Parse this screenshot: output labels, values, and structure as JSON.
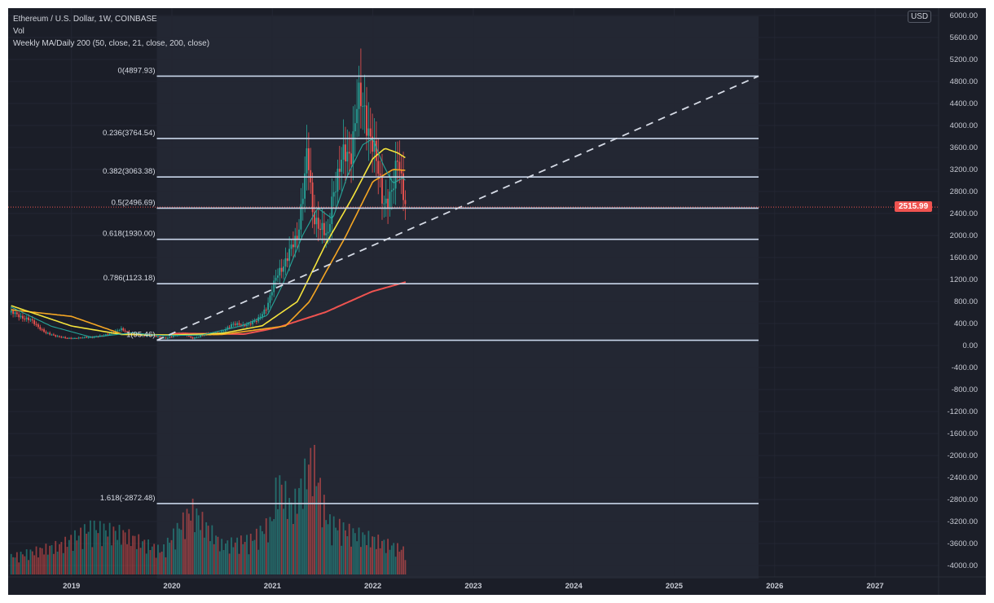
{
  "header": {
    "symbol_title": "Ethereum / U.S. Dollar, 1W, COINBASE",
    "indicator_vol": "Vol",
    "indicator_ma": "Weekly MA/Daily 200 (50, close, 21, close, 200, close)"
  },
  "price_axis": {
    "currency_button": "USD",
    "last_price": "2515.99"
  },
  "colors": {
    "background": "#1b1e28",
    "up": "#26a69a",
    "down": "#ef5350",
    "ma21": "#26a69a",
    "ma50_yellow": "#f5e43c",
    "ma_orange": "#f5a623",
    "ma200": "#ef5350",
    "fib": "#c9d6ea"
  },
  "chart_data": {
    "type": "candlestick",
    "title": "Ethereum / U.S. Dollar, 1W, COINBASE",
    "ylim": [
      -4200,
      6000
    ],
    "y_ticks": [
      "6000.00",
      "5600.00",
      "5200.00",
      "4800.00",
      "4400.00",
      "4000.00",
      "3600.00",
      "3200.00",
      "2800.00",
      "2400.00",
      "2000.00",
      "1600.00",
      "1200.00",
      "800.00",
      "400.00",
      "0.00",
      "-400.00",
      "-800.00",
      "-1200.00",
      "-1600.00",
      "-2000.00",
      "-2400.00",
      "-2800.00",
      "-3200.00",
      "-3600.00",
      "-4000.00"
    ],
    "x_ticks": [
      "2019",
      "2020",
      "2021",
      "2022",
      "2023",
      "2024",
      "2025",
      "2026",
      "2027"
    ],
    "price_close": [
      [
        2018.4,
        600
      ],
      [
        2018.6,
        450
      ],
      [
        2018.75,
        220
      ],
      [
        2018.95,
        130
      ],
      [
        2019.1,
        140
      ],
      [
        2019.3,
        170
      ],
      [
        2019.45,
        260
      ],
      [
        2019.5,
        300
      ],
      [
        2019.6,
        200
      ],
      [
        2019.8,
        180
      ],
      [
        2019.95,
        130
      ],
      [
        2020.1,
        230
      ],
      [
        2020.2,
        130
      ],
      [
        2020.35,
        210
      ],
      [
        2020.5,
        240
      ],
      [
        2020.6,
        400
      ],
      [
        2020.7,
        360
      ],
      [
        2020.85,
        450
      ],
      [
        2020.95,
        730
      ],
      [
        2021.05,
        1300
      ],
      [
        2021.15,
        1600
      ],
      [
        2021.25,
        2000
      ],
      [
        2021.35,
        3500
      ],
      [
        2021.4,
        2400
      ],
      [
        2021.5,
        2100
      ],
      [
        2021.55,
        1900
      ],
      [
        2021.6,
        2800
      ],
      [
        2021.7,
        3400
      ],
      [
        2021.78,
        3500
      ],
      [
        2021.85,
        4500
      ],
      [
        2021.92,
        4200
      ],
      [
        2022.0,
        3700
      ],
      [
        2022.1,
        2600
      ],
      [
        2022.2,
        2800
      ],
      [
        2022.25,
        3400
      ],
      [
        2022.3,
        2900
      ],
      [
        2022.33,
        2516
      ]
    ],
    "ma21": [
      [
        2018.4,
        700
      ],
      [
        2018.8,
        350
      ],
      [
        2019.2,
        150
      ],
      [
        2019.6,
        230
      ],
      [
        2019.9,
        180
      ],
      [
        2020.3,
        190
      ],
      [
        2020.7,
        360
      ],
      [
        2020.95,
        550
      ],
      [
        2021.1,
        1100
      ],
      [
        2021.3,
        2000
      ],
      [
        2021.45,
        2500
      ],
      [
        2021.6,
        2300
      ],
      [
        2021.75,
        3100
      ],
      [
        2021.9,
        3650
      ],
      [
        2022.0,
        3760
      ],
      [
        2022.1,
        3300
      ],
      [
        2022.2,
        2950
      ],
      [
        2022.3,
        3050
      ],
      [
        2022.33,
        2990
      ]
    ],
    "ma_yellow": [
      [
        2018.4,
        725
      ],
      [
        2019.0,
        355
      ],
      [
        2019.5,
        200
      ],
      [
        2020.0,
        190
      ],
      [
        2020.5,
        220
      ],
      [
        2020.9,
        360
      ],
      [
        2021.25,
        800
      ],
      [
        2021.53,
        1840
      ],
      [
        2021.8,
        2700
      ],
      [
        2022.0,
        3400
      ],
      [
        2022.12,
        3585
      ],
      [
        2022.25,
        3500
      ],
      [
        2022.33,
        3407
      ]
    ],
    "ma_orange": [
      [
        2018.4,
        650
      ],
      [
        2019.0,
        530
      ],
      [
        2019.5,
        210
      ],
      [
        2020.0,
        190
      ],
      [
        2020.5,
        200
      ],
      [
        2021.13,
        355
      ],
      [
        2021.37,
        800
      ],
      [
        2021.73,
        1985
      ],
      [
        2022.0,
        2980
      ],
      [
        2022.2,
        3200
      ],
      [
        2022.33,
        3185
      ]
    ],
    "ma200": [
      [
        2020.0,
        220
      ],
      [
        2020.72,
        207
      ],
      [
        2021.05,
        326
      ],
      [
        2021.53,
        607
      ],
      [
        2021.99,
        980
      ],
      [
        2022.33,
        1155
      ]
    ],
    "volume_relative": [
      [
        2018.4,
        15
      ],
      [
        2018.9,
        25
      ],
      [
        2019.2,
        40
      ],
      [
        2019.5,
        35
      ],
      [
        2019.9,
        20
      ],
      [
        2020.2,
        55
      ],
      [
        2020.5,
        25
      ],
      [
        2020.8,
        30
      ],
      [
        2021.0,
        45
      ],
      [
        2021.05,
        80
      ],
      [
        2021.2,
        55
      ],
      [
        2021.4,
        100
      ],
      [
        2021.55,
        45
      ],
      [
        2021.8,
        35
      ],
      [
        2022.0,
        30
      ],
      [
        2022.33,
        20
      ]
    ],
    "fib_levels": [
      {
        "label": "0(4897.93)",
        "value": 4897.93
      },
      {
        "label": "0.236(3764.54)",
        "value": 3764.54
      },
      {
        "label": "0.382(3063.38)",
        "value": 3063.38
      },
      {
        "label": "0.5(2496.69)",
        "value": 2496.69
      },
      {
        "label": "0.618(1930.00)",
        "value": 1930.0
      },
      {
        "label": "0.786(1123.18)",
        "value": 1123.18
      },
      {
        "label": "1(95.46)",
        "value": 95.46
      },
      {
        "label": "1.618(-2872.48)",
        "value": -2872.48
      }
    ],
    "fib_range": [
      2019.85,
      2025.84
    ],
    "trendline": [
      [
        2019.85,
        95.46
      ],
      [
        2025.84,
        4897.93
      ]
    ]
  }
}
